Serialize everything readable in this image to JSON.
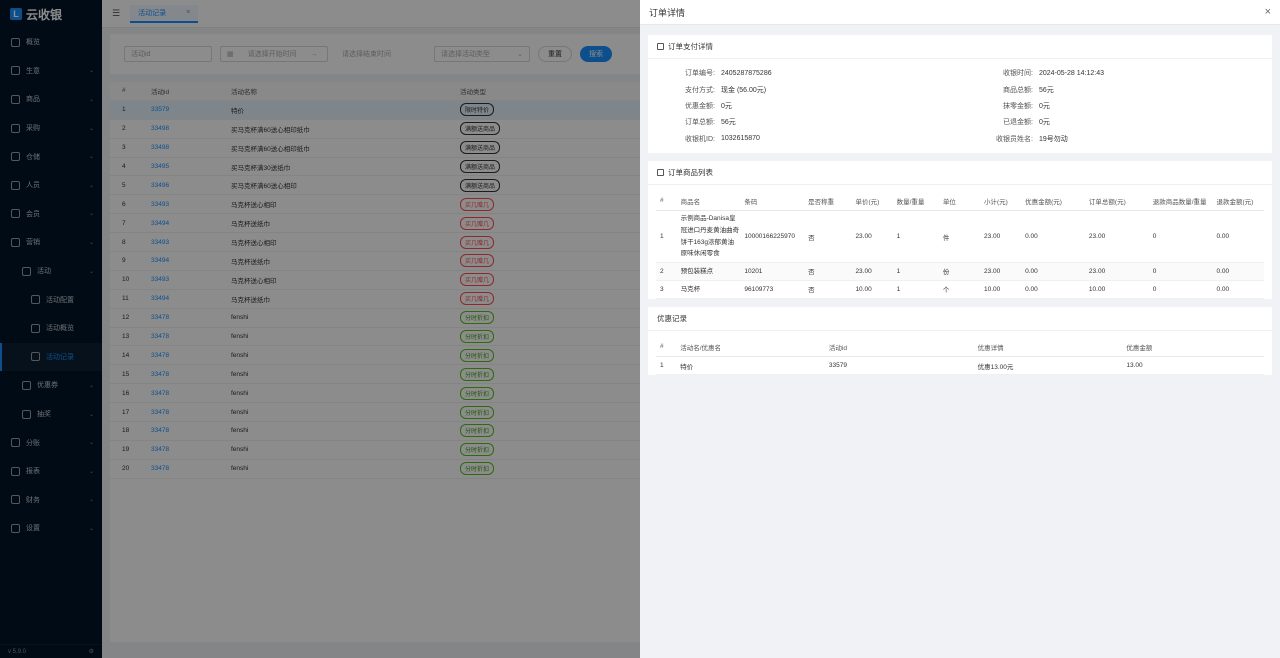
{
  "app": {
    "logo_text": "云收银",
    "version": "v 5.9.0"
  },
  "sidebar": {
    "items": [
      {
        "label": "概览",
        "icon": "dashboard-icon",
        "level": 0,
        "chevron": false
      },
      {
        "label": "生意",
        "icon": "business-icon",
        "level": 0,
        "chevron": true
      },
      {
        "label": "商品",
        "icon": "goods-icon",
        "level": 0,
        "chevron": true
      },
      {
        "label": "采购",
        "icon": "cart-icon",
        "level": 0,
        "chevron": true
      },
      {
        "label": "仓储",
        "icon": "warehouse-icon",
        "level": 0,
        "chevron": true
      },
      {
        "label": "人员",
        "icon": "user-icon",
        "level": 0,
        "chevron": true
      },
      {
        "label": "会员",
        "icon": "member-icon",
        "level": 0,
        "chevron": true
      },
      {
        "label": "营销",
        "icon": "marketing-icon",
        "level": 0,
        "chevron": true
      },
      {
        "label": "活动",
        "icon": "activity-icon",
        "level": 1,
        "chevron": true
      },
      {
        "label": "活动配置",
        "icon": "config-icon",
        "level": 2,
        "chevron": false
      },
      {
        "label": "活动概览",
        "icon": "chart-icon",
        "level": 2,
        "chevron": false
      },
      {
        "label": "活动记录",
        "icon": "record-icon",
        "level": 2,
        "chevron": false,
        "active": true
      },
      {
        "label": "优惠券",
        "icon": "coupon-icon",
        "level": 1,
        "chevron": true
      },
      {
        "label": "抽奖",
        "icon": "lottery-icon",
        "level": 1,
        "chevron": true
      },
      {
        "label": "分账",
        "icon": "split-icon",
        "level": 0,
        "chevron": true
      },
      {
        "label": "报表",
        "icon": "report-icon",
        "level": 0,
        "chevron": true
      },
      {
        "label": "财务",
        "icon": "finance-icon",
        "level": 0,
        "chevron": true
      },
      {
        "label": "设置",
        "icon": "settings-icon",
        "level": 0,
        "chevron": true
      }
    ]
  },
  "main": {
    "tab_label": "活动记录",
    "filters": {
      "activity_id_placeholder": "活动id",
      "start_time_placeholder": "请选择开始时间",
      "end_time_placeholder": "请选择结束时间",
      "type_placeholder": "请选择活动类型",
      "reset_label": "重置",
      "search_label": "搜索"
    },
    "table": {
      "headers": [
        "#",
        "活动id",
        "活动名称",
        "活动类型"
      ],
      "rows": [
        {
          "idx": "1",
          "id": "33579",
          "name": "特价",
          "type": "限时特价",
          "tag": "dark"
        },
        {
          "idx": "2",
          "id": "33498",
          "name": "买马克杯满60送心相印纸巾",
          "type": "满额送商品",
          "tag": "dark"
        },
        {
          "idx": "3",
          "id": "33498",
          "name": "买马克杯满60送心相印纸巾",
          "type": "满额送商品",
          "tag": "dark"
        },
        {
          "idx": "4",
          "id": "33495",
          "name": "买马克杯满30送纸巾",
          "type": "满额送商品",
          "tag": "dark"
        },
        {
          "idx": "5",
          "id": "33496",
          "name": "买马克杯满60送心相印",
          "type": "满额送商品",
          "tag": "dark"
        },
        {
          "idx": "6",
          "id": "33493",
          "name": "马克杯送心相印",
          "type": "买几赠几",
          "tag": "red"
        },
        {
          "idx": "7",
          "id": "33494",
          "name": "马克杯送纸巾",
          "type": "买几赠几",
          "tag": "red"
        },
        {
          "idx": "8",
          "id": "33493",
          "name": "马克杯送心相印",
          "type": "买几赠几",
          "tag": "red"
        },
        {
          "idx": "9",
          "id": "33494",
          "name": "马克杯送纸巾",
          "type": "买几赠几",
          "tag": "red"
        },
        {
          "idx": "10",
          "id": "33493",
          "name": "马克杯送心相印",
          "type": "买几赠几",
          "tag": "red"
        },
        {
          "idx": "11",
          "id": "33494",
          "name": "马克杯送纸巾",
          "type": "买几赠几",
          "tag": "red"
        },
        {
          "idx": "12",
          "id": "33478",
          "name": "fenshi",
          "type": "分时折扣",
          "tag": "green"
        },
        {
          "idx": "13",
          "id": "33478",
          "name": "fenshi",
          "type": "分时折扣",
          "tag": "green"
        },
        {
          "idx": "14",
          "id": "33478",
          "name": "fenshi",
          "type": "分时折扣",
          "tag": "green"
        },
        {
          "idx": "15",
          "id": "33478",
          "name": "fenshi",
          "type": "分时折扣",
          "tag": "green"
        },
        {
          "idx": "16",
          "id": "33478",
          "name": "fenshi",
          "type": "分时折扣",
          "tag": "green"
        },
        {
          "idx": "17",
          "id": "33478",
          "name": "fenshi",
          "type": "分时折扣",
          "tag": "green"
        },
        {
          "idx": "18",
          "id": "33478",
          "name": "fenshi",
          "type": "分时折扣",
          "tag": "green"
        },
        {
          "idx": "19",
          "id": "33478",
          "name": "fenshi",
          "type": "分时折扣",
          "tag": "green"
        },
        {
          "idx": "20",
          "id": "33478",
          "name": "fenshi",
          "type": "分时折扣",
          "tag": "green"
        }
      ]
    }
  },
  "drawer": {
    "title": "订单详情",
    "payment": {
      "title": "订单支付详情",
      "left": [
        {
          "label": "订单编号:",
          "value": "2405287875286"
        },
        {
          "label": "支付方式:",
          "value": "现金 (56.00元)"
        },
        {
          "label": "优惠金额:",
          "value": "0元"
        },
        {
          "label": "订单总额:",
          "value": "56元"
        },
        {
          "label": "收银机ID:",
          "value": "1032615870"
        }
      ],
      "right": [
        {
          "label": "收银时间:",
          "value": "2024-05-28 14:12:43"
        },
        {
          "label": "商品总额:",
          "value": "56元"
        },
        {
          "label": "抹零金额:",
          "value": "0元"
        },
        {
          "label": "已退金额:",
          "value": "0元"
        },
        {
          "label": "收银员姓名:",
          "value": "19号勿动"
        }
      ]
    },
    "goods": {
      "title": "订单商品列表",
      "headers": [
        "#",
        "商品名",
        "条码",
        "是否称重",
        "单价(元)",
        "数量/重量",
        "单位",
        "小计(元)",
        "优惠金额(元)",
        "订单总额(元)",
        "退款商品数量/重量",
        "退款金额(元)"
      ],
      "rows": [
        [
          "1",
          "示例商品-Danisa皇冠进口丹麦黄油曲奇饼干163g浓郁黄油原味休闲零食",
          "10000166225970",
          "否",
          "23.00",
          "1",
          "件",
          "23.00",
          "0.00",
          "23.00",
          "0",
          "0.00"
        ],
        [
          "2",
          "预包装糕点",
          "10201",
          "否",
          "23.00",
          "1",
          "份",
          "23.00",
          "0.00",
          "23.00",
          "0",
          "0.00"
        ],
        [
          "3",
          "马克杯",
          "96109773",
          "否",
          "10.00",
          "1",
          "个",
          "10.00",
          "0.00",
          "10.00",
          "0",
          "0.00"
        ]
      ]
    },
    "discounts": {
      "title": "优惠记录",
      "headers": [
        "#",
        "活动名/优惠名",
        "活动id",
        "优惠详情",
        "优惠金额"
      ],
      "rows": [
        [
          "1",
          "特价",
          "33579",
          "优惠13.00元",
          "13.00"
        ]
      ]
    }
  }
}
